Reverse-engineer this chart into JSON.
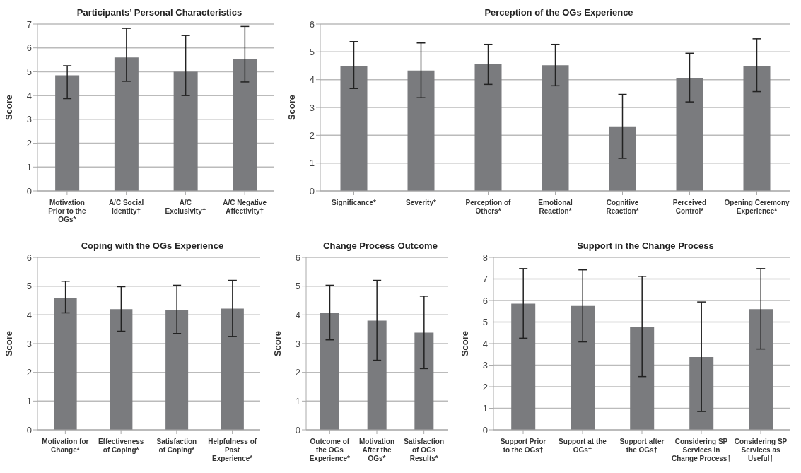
{
  "chart_data": [
    {
      "type": "bar",
      "title": "Participants’ Personal Characteristics",
      "ylabel": "Score",
      "categories": [
        "Motivation Prior to the OGs*",
        "A/C Social Identity†",
        "A/C Exclusivity†",
        "A/C Negative Affectivity†"
      ],
      "values": [
        4.85,
        5.6,
        5.0,
        5.55
      ],
      "errors": [
        [
          3.87,
          5.25
        ],
        [
          4.6,
          6.82
        ],
        [
          4.0,
          6.52
        ],
        [
          4.57,
          6.9
        ]
      ],
      "color": "#7a7b7e",
      "ylim": [
        0,
        7
      ],
      "yticks": [
        0,
        1,
        2,
        3,
        4,
        5,
        6,
        7
      ],
      "grid": "y"
    },
    {
      "type": "bar",
      "title": "Perception of the OGs Experience",
      "ylabel": "Score",
      "categories": [
        "Significance*",
        "Severity*",
        "Perception of Others*",
        "Emotional Reaction*",
        "Cognitive Reaction*",
        "Perceived Control*",
        "Opening Ceremony Experience*"
      ],
      "values": [
        4.5,
        4.33,
        4.55,
        4.52,
        2.32,
        4.07,
        4.5
      ],
      "errors": [
        [
          3.68,
          5.37
        ],
        [
          3.35,
          5.32
        ],
        [
          3.83,
          5.27
        ],
        [
          3.78,
          5.27
        ],
        [
          1.17,
          3.47
        ],
        [
          3.2,
          4.95
        ],
        [
          3.57,
          5.47
        ]
      ],
      "color": "#7a7b7e",
      "ylim": [
        0,
        6
      ],
      "yticks": [
        0,
        1,
        2,
        3,
        4,
        5,
        6
      ],
      "grid": "y"
    },
    {
      "type": "bar",
      "title": "Coping with the OGs Experience",
      "ylabel": "Score",
      "categories": [
        "Motivation for Change*",
        "Effectiveness of Coping*",
        "Satisfaction of Coping*",
        "Helpfulness of Past Experience*"
      ],
      "values": [
        4.6,
        4.2,
        4.18,
        4.22
      ],
      "errors": [
        [
          4.07,
          5.17
        ],
        [
          3.43,
          4.98
        ],
        [
          3.35,
          5.03
        ],
        [
          3.25,
          5.2
        ]
      ],
      "color": "#7a7b7e",
      "ylim": [
        0,
        6
      ],
      "yticks": [
        0,
        1,
        2,
        3,
        4,
        5,
        6
      ],
      "grid": "y"
    },
    {
      "type": "bar",
      "title": "Change Process Outcome",
      "ylabel": "Score",
      "categories": [
        "Outcome of the OGs Experience*",
        "Motivation After the OGs*",
        "Satisfaction of OGs Results*"
      ],
      "values": [
        4.07,
        3.8,
        3.38
      ],
      "errors": [
        [
          3.13,
          5.03
        ],
        [
          2.42,
          5.2
        ],
        [
          2.13,
          4.65
        ]
      ],
      "color": "#7a7b7e",
      "ylim": [
        0,
        6
      ],
      "yticks": [
        0,
        1,
        2,
        3,
        4,
        5,
        6
      ],
      "grid": "y"
    },
    {
      "type": "bar",
      "title": "Support in the Change Process",
      "ylabel": "Score",
      "categories": [
        "Support Prior to the OGs†",
        "Support at the OGs†",
        "Support after the OGs†",
        "Considering SP Services in Change Process†",
        "Considering SP Services as Useful†"
      ],
      "values": [
        5.85,
        5.75,
        4.78,
        3.38,
        5.6
      ],
      "errors": [
        [
          4.25,
          7.48
        ],
        [
          4.08,
          7.42
        ],
        [
          2.47,
          7.12
        ],
        [
          0.85,
          5.93
        ],
        [
          3.75,
          7.48
        ]
      ],
      "color": "#7a7b7e",
      "ylim": [
        0,
        8
      ],
      "yticks": [
        0,
        1,
        2,
        3,
        4,
        5,
        6,
        7,
        8
      ],
      "grid": "y"
    }
  ]
}
